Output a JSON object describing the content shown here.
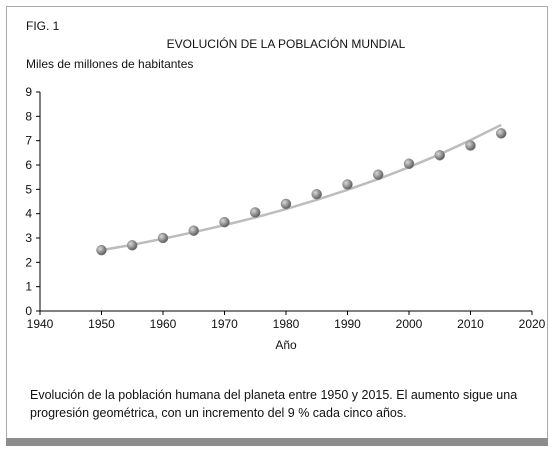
{
  "fig_label": "FIG. 1",
  "caption": "Evolución de la población humana del planeta entre 1950 y 2015. El aumento sigue una progresión geométrica, con un incremento del 9 % cada cinco años.",
  "chart_data": {
    "type": "scatter",
    "title": "EVOLUCIÓN DE LA POBLACIÓN MUNDIAL",
    "y_label": "Miles de millones de habitantes",
    "x_label": "Año",
    "x": [
      1950,
      1955,
      1960,
      1965,
      1970,
      1975,
      1980,
      1985,
      1990,
      1995,
      2000,
      2005,
      2010,
      2015
    ],
    "series": [
      {
        "type": "scatter",
        "color": "#8a8a8a",
        "values": [
          2.5,
          2.7,
          3.0,
          3.3,
          3.65,
          4.05,
          4.4,
          4.8,
          5.2,
          5.6,
          6.05,
          6.4,
          6.8,
          7.3
        ]
      },
      {
        "type": "line",
        "color": "#bdbdbd",
        "values": [
          2.5,
          2.72,
          2.97,
          3.24,
          3.53,
          3.84,
          4.19,
          4.57,
          4.98,
          5.42,
          5.91,
          6.44,
          7.02,
          7.65
        ]
      }
    ],
    "xlim": [
      1940,
      2020
    ],
    "xticks": [
      1940,
      1950,
      1960,
      1970,
      1980,
      1990,
      2000,
      2010,
      2020
    ],
    "ylim": [
      0,
      9
    ],
    "yticks": [
      0,
      1,
      2,
      3,
      4,
      5,
      6,
      7,
      8,
      9
    ],
    "grid": false
  }
}
